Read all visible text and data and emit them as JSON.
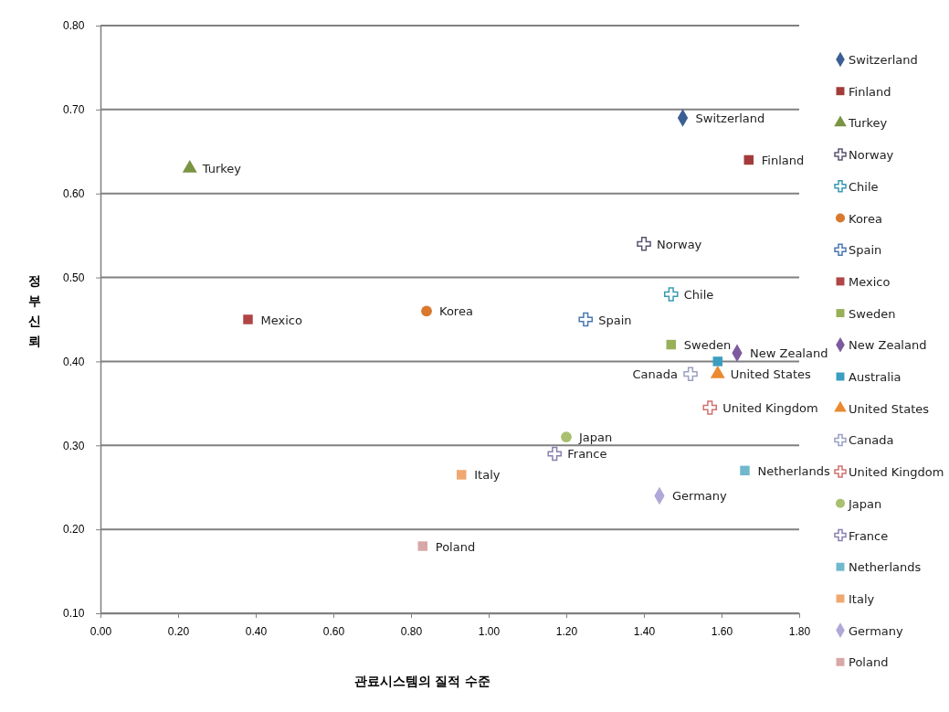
{
  "chart_data": {
    "type": "scatter",
    "xlabel": "관료시스템의 질적 수준",
    "ylabel": "정부신뢰",
    "xlim": [
      0,
      1.8
    ],
    "xticks": [
      {
        "value": 0,
        "label": "0.00"
      },
      {
        "value": 0.2,
        "label": "0.20"
      },
      {
        "value": 0.4,
        "label": "0.40"
      },
      {
        "value": 0.6,
        "label": "0.60"
      },
      {
        "value": 0.8,
        "label": "0.80"
      },
      {
        "value": 1.0,
        "label": "1.00"
      },
      {
        "value": 1.2,
        "label": "1.20"
      },
      {
        "value": 1.4,
        "label": "1.40"
      },
      {
        "value": 1.6,
        "label": "1.60"
      },
      {
        "value": 1.8,
        "label": "1.80"
      }
    ],
    "ylim": [
      0.1,
      0.8
    ],
    "yticks": [
      {
        "value": 0.1,
        "label": "0.10"
      },
      {
        "value": 0.2,
        "label": "0.20"
      },
      {
        "value": 0.3,
        "label": "0.30"
      },
      {
        "value": 0.4,
        "label": "0.40"
      },
      {
        "value": 0.5,
        "label": "0.50"
      },
      {
        "value": 0.6,
        "label": "0.60"
      },
      {
        "value": 0.7,
        "label": "0.70"
      },
      {
        "value": 0.8,
        "label": "0.80"
      }
    ],
    "grid": "y",
    "legend": "right",
    "annotations": [
      {
        "text": "Switzerland",
        "x": 1.5,
        "y": 0.69
      },
      {
        "text": "Finland",
        "x": 1.67,
        "y": 0.64
      },
      {
        "text": "Turkey",
        "x": 0.23,
        "y": 0.63
      },
      {
        "text": "Norway",
        "x": 1.4,
        "y": 0.54
      },
      {
        "text": "Chile",
        "x": 1.47,
        "y": 0.48
      },
      {
        "text": "Korea",
        "x": 0.84,
        "y": 0.46
      },
      {
        "text": "Spain",
        "x": 1.25,
        "y": 0.45
      },
      {
        "text": "Mexico",
        "x": 0.38,
        "y": 0.45
      },
      {
        "text": "Sweden",
        "x": 1.47,
        "y": 0.42
      },
      {
        "text": "New Zealand",
        "x": 1.64,
        "y": 0.41
      },
      {
        "text": "United States",
        "x": 1.59,
        "y": 0.385
      },
      {
        "text": "Canada",
        "x": 1.52,
        "y": 0.385
      },
      {
        "text": "United Kingdom",
        "x": 1.57,
        "y": 0.345
      },
      {
        "text": "Japan",
        "x": 1.2,
        "y": 0.31
      },
      {
        "text": "France",
        "x": 1.17,
        "y": 0.29
      },
      {
        "text": "Netherlands",
        "x": 1.66,
        "y": 0.27
      },
      {
        "text": "Italy",
        "x": 0.93,
        "y": 0.265
      },
      {
        "text": "Germany",
        "x": 1.44,
        "y": 0.24
      },
      {
        "text": "Poland",
        "x": 0.83,
        "y": 0.18
      }
    ],
    "series": [
      {
        "name": "Switzerland",
        "color": "#3a5f94",
        "marker": "diamond",
        "x": [
          1.5
        ],
        "values": [
          0.69
        ]
      },
      {
        "name": "Finland",
        "color": "#a23b3a",
        "marker": "square",
        "x": [
          1.67
        ],
        "values": [
          0.64
        ]
      },
      {
        "name": "Turkey",
        "color": "#7a9443",
        "marker": "triangle",
        "x": [
          0.23
        ],
        "values": [
          0.63
        ]
      },
      {
        "name": "Norway",
        "color": "#5a5570",
        "marker": "cross",
        "x": [
          1.4
        ],
        "values": [
          0.54
        ]
      },
      {
        "name": "Chile",
        "color": "#3a9ab0",
        "marker": "cross",
        "x": [
          1.47
        ],
        "values": [
          0.48
        ]
      },
      {
        "name": "Korea",
        "color": "#d9782e",
        "marker": "circle",
        "x": [
          0.84
        ],
        "values": [
          0.46
        ]
      },
      {
        "name": "Spain",
        "color": "#4a78b0",
        "marker": "cross",
        "x": [
          1.25
        ],
        "values": [
          0.45
        ]
      },
      {
        "name": "Mexico",
        "color": "#b04545",
        "marker": "square",
        "x": [
          0.38
        ],
        "values": [
          0.45
        ]
      },
      {
        "name": "Sweden",
        "color": "#98b058",
        "marker": "square",
        "x": [
          1.47
        ],
        "values": [
          0.42
        ]
      },
      {
        "name": "New Zealand",
        "color": "#7d5a9e",
        "marker": "diamond",
        "x": [
          1.64
        ],
        "values": [
          0.41
        ]
      },
      {
        "name": "Australia",
        "color": "#3a9ec0",
        "marker": "square",
        "x": [
          1.59
        ],
        "values": [
          0.4
        ]
      },
      {
        "name": "United States",
        "color": "#ea8a30",
        "marker": "triangle",
        "x": [
          1.59
        ],
        "values": [
          0.385
        ]
      },
      {
        "name": "Canada",
        "color": "#9aa0c0",
        "marker": "cross",
        "x": [
          1.52
        ],
        "values": [
          0.385
        ]
      },
      {
        "name": "United Kingdom",
        "color": "#d07070",
        "marker": "cross",
        "x": [
          1.57
        ],
        "values": [
          0.345
        ]
      },
      {
        "name": "Japan",
        "color": "#a8c070",
        "marker": "circle",
        "x": [
          1.2
        ],
        "values": [
          0.31
        ]
      },
      {
        "name": "France",
        "color": "#8880b0",
        "marker": "cross",
        "x": [
          1.17
        ],
        "values": [
          0.29
        ]
      },
      {
        "name": "Netherlands",
        "color": "#70b8cc",
        "marker": "square",
        "x": [
          1.66
        ],
        "values": [
          0.27
        ]
      },
      {
        "name": "Italy",
        "color": "#f0a870",
        "marker": "square",
        "x": [
          0.93
        ],
        "values": [
          0.265
        ]
      },
      {
        "name": "Germany",
        "color": "#b0a8d8",
        "marker": "diamond",
        "x": [
          1.44
        ],
        "values": [
          0.24
        ]
      },
      {
        "name": "Poland",
        "color": "#d8a8a8",
        "marker": "square",
        "x": [
          0.83
        ],
        "values": [
          0.18
        ]
      }
    ]
  }
}
